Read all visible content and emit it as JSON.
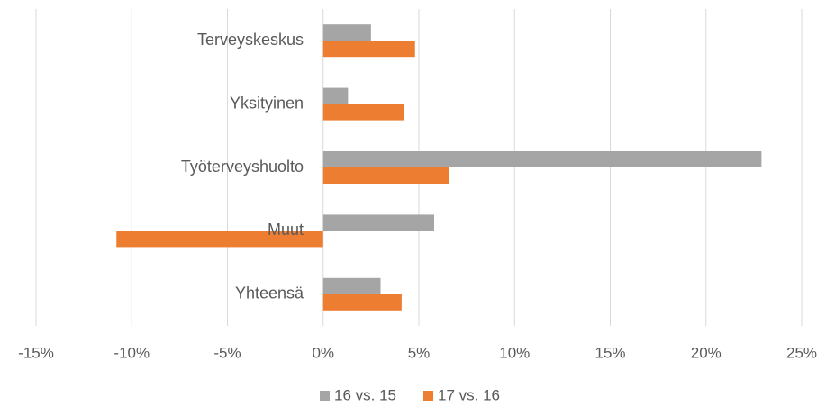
{
  "chart_data": {
    "type": "hbar",
    "categories": [
      "Terveyskeskus",
      "Yksityinen",
      "Työterveyshuolto",
      "Muut",
      "Yhteensä"
    ],
    "series": [
      {
        "name": "16 vs. 15",
        "color": "#a5a5a5",
        "values": [
          2.5,
          1.3,
          22.9,
          5.8,
          3.0
        ]
      },
      {
        "name": "17 vs. 16",
        "color": "#ed7d31",
        "values": [
          4.8,
          4.2,
          6.6,
          -10.8,
          4.1
        ]
      }
    ],
    "xlim": [
      -15,
      25
    ],
    "xticks": [
      {
        "value": -15,
        "label": "-15%"
      },
      {
        "value": -10,
        "label": "-10%"
      },
      {
        "value": -5,
        "label": "-5%"
      },
      {
        "value": 0,
        "label": "0%"
      },
      {
        "value": 5,
        "label": "5%"
      },
      {
        "value": 10,
        "label": "10%"
      },
      {
        "value": 15,
        "label": "15%"
      },
      {
        "value": 20,
        "label": "20%"
      },
      {
        "value": 25,
        "label": "25%"
      }
    ],
    "grid": true,
    "legend": "bottom"
  }
}
